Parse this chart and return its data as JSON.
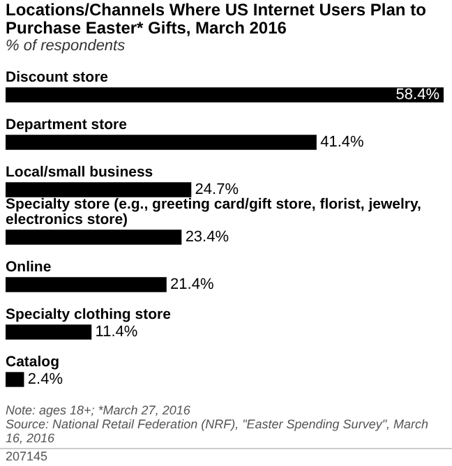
{
  "chart_data": {
    "type": "bar",
    "orientation": "horizontal",
    "title": "Locations/Channels Where US Internet Users Plan to Purchase Easter* Gifts, March 2016",
    "subtitle": "% of respondents",
    "categories": [
      "Discount store",
      "Department store",
      "Local/small business",
      "Specialty store (e.g., greeting card/gift store, florist, jewelry, electronics store)",
      "Online",
      "Specialty clothing store",
      "Catalog"
    ],
    "values": [
      58.4,
      41.4,
      24.7,
      23.4,
      21.4,
      11.4,
      2.4
    ],
    "value_labels": [
      "58.4%",
      "41.4%",
      "24.7%",
      "23.4%",
      "21.4%",
      "11.4%",
      "2.4%"
    ],
    "color": "#000000",
    "annotations": [
      "Note: ages 18+; *March 27, 2016",
      "Source: National Retail Federation (NRF), \"Easter Spending Survey\", March 16, 2016",
      "207145"
    ]
  }
}
